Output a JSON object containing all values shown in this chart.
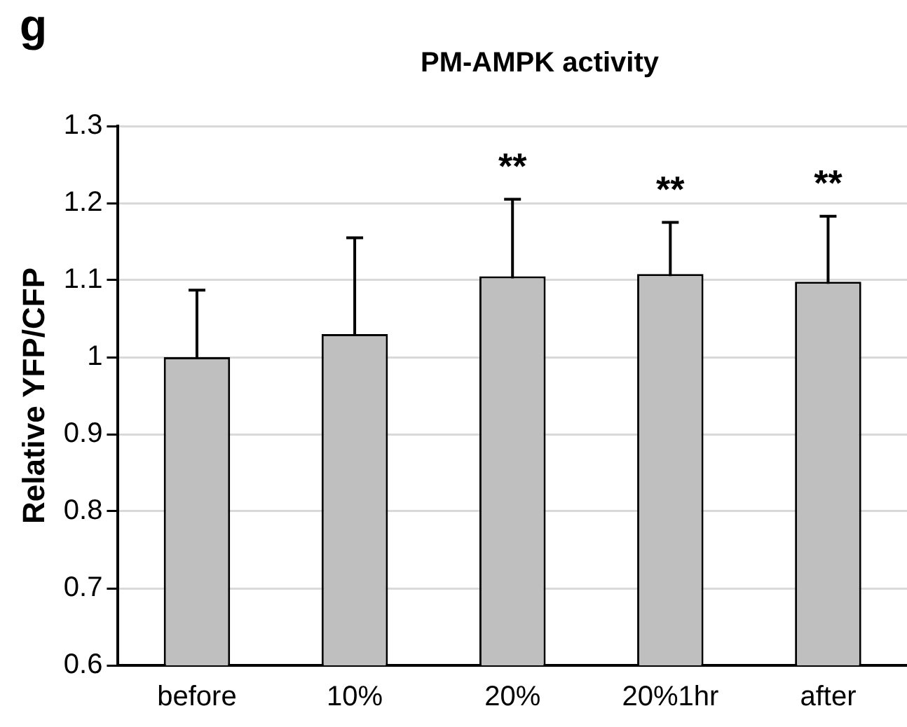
{
  "chart_data": {
    "type": "bar",
    "title": "PM-AMPK activity",
    "ylabel": "Relative YFP/CFP",
    "categories": [
      "before",
      "10%",
      "20%",
      "20%1hr",
      "after"
    ],
    "values": [
      1.0,
      1.03,
      1.105,
      1.108,
      1.098
    ],
    "errors": [
      0.087,
      0.125,
      0.1,
      0.067,
      0.085
    ],
    "color": "#bfbfbf",
    "ylim": [
      0.6,
      1.3
    ],
    "yticks": [
      0.6,
      0.7,
      0.8,
      0.9,
      1,
      1.1,
      1.2,
      1.3
    ],
    "grid": "y",
    "legend": false,
    "annotations": [
      "g",
      {
        "text": "**",
        "x": "20%",
        "y": 1.205
      },
      {
        "text": "**",
        "x": "20%1hr",
        "y": 1.175
      },
      {
        "text": "**",
        "x": "after",
        "y": 1.183
      }
    ]
  }
}
